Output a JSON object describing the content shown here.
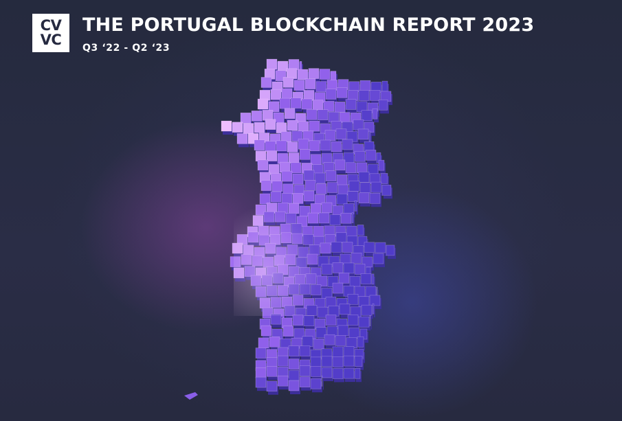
{
  "logo": {
    "line1": "CV",
    "line2": "VC"
  },
  "header": {
    "title": "THE PORTUGAL BLOCKCHAIN REPORT 2023",
    "subtitle": "Q3 ‘22 - Q2 ‘23"
  },
  "illustration": {
    "subject": "portugal-map-3d-blocks",
    "colors": {
      "top": "#e7b8ff",
      "mid": "#a86df0",
      "deep": "#5a3fd0",
      "background": "#262a40"
    }
  }
}
